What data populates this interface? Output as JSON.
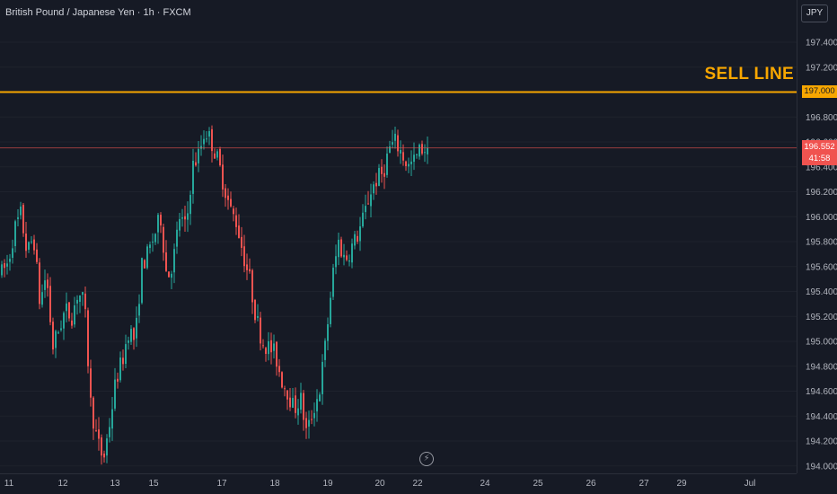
{
  "header": {
    "symbol_title": "British Pound / Japanese Yen · 1h · FXCM"
  },
  "currency_badge": "JPY",
  "annotation": {
    "label": "SELL LINE",
    "level": 197.0,
    "color": "#f7a600"
  },
  "price_tags": {
    "sell_line_value": "197.000",
    "last_price": "196.552",
    "countdown": "41:58",
    "last_color": "#f05350"
  },
  "flash_icon": "lightning-icon",
  "colors": {
    "background": "#161a25",
    "up": "#26a69a",
    "down": "#ef5350"
  },
  "chart_data": {
    "type": "candlestick",
    "title": "British Pound / Japanese Yen · 1h · FXCM",
    "ylim": [
      193.94,
      197.62
    ],
    "y_ticks": [
      "197.400",
      "197.200",
      "197.000",
      "196.800",
      "196.600",
      "196.400",
      "196.200",
      "196.000",
      "195.800",
      "195.600",
      "195.400",
      "195.200",
      "195.000",
      "194.800",
      "194.600",
      "194.400",
      "194.200",
      "194.000"
    ],
    "x_ticks": [
      "11",
      "12",
      "13",
      "15",
      "17",
      "18",
      "19",
      "20",
      "22",
      "24",
      "25",
      "26",
      "27",
      "29",
      "Jul"
    ],
    "horizontal_lines": [
      {
        "name": "SELL LINE",
        "value": 197.0
      },
      {
        "name": "last price",
        "value": 196.552
      }
    ],
    "price_path": [
      [
        195.55,
        195.63
      ],
      [
        195.9,
        196.02
      ],
      [
        195.7,
        195.85
      ],
      [
        195.3,
        195.55
      ],
      [
        194.95,
        195.1
      ],
      [
        195.25,
        195.2
      ],
      [
        195.4,
        195.3
      ],
      [
        194.5,
        194.2
      ],
      [
        194.05,
        194.35
      ],
      [
        194.7,
        194.85
      ],
      [
        195.1,
        195.0
      ],
      [
        195.6,
        195.7
      ],
      [
        195.85,
        196.0
      ],
      [
        195.5,
        195.65
      ],
      [
        196.0,
        195.9
      ],
      [
        196.4,
        196.5
      ],
      [
        196.7,
        196.6
      ],
      [
        196.45,
        196.25
      ],
      [
        196.05,
        195.95
      ],
      [
        195.7,
        195.5
      ],
      [
        195.2,
        195.0
      ],
      [
        194.95,
        194.9
      ],
      [
        194.7,
        194.6
      ],
      [
        194.45,
        194.55
      ],
      [
        194.25,
        194.45
      ],
      [
        194.6,
        195.0
      ],
      [
        195.5,
        195.8
      ],
      [
        195.65,
        195.75
      ],
      [
        195.85,
        196.0
      ],
      [
        196.2,
        196.3
      ],
      [
        196.35,
        196.55
      ],
      [
        196.6,
        196.5
      ],
      [
        196.4,
        196.45
      ],
      [
        196.55,
        196.55
      ]
    ]
  }
}
